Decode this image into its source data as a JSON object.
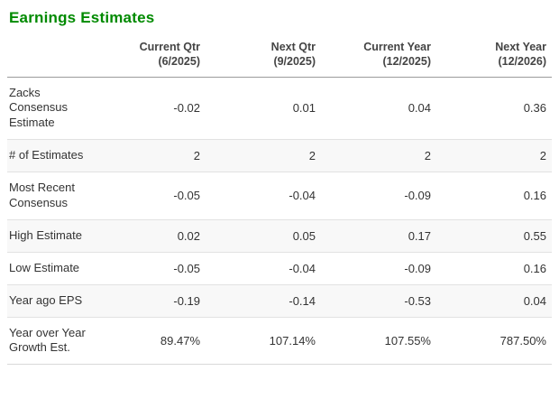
{
  "title": "Earnings Estimates",
  "colors": {
    "title_green": "#008a00",
    "header_divider": "#9b9b9b",
    "row_divider": "#e2e2e2",
    "alt_row_bg": "#f8f8f8",
    "text": "#333333"
  },
  "table": {
    "columns": [
      {
        "label": "Current Qtr",
        "sub": "(6/2025)"
      },
      {
        "label": "Next Qtr",
        "sub": "(9/2025)"
      },
      {
        "label": "Current Year",
        "sub": "(12/2025)"
      },
      {
        "label": "Next Year",
        "sub": "(12/2026)"
      }
    ],
    "rows": [
      {
        "label": "Zacks Consensus Estimate",
        "values": [
          "-0.02",
          "0.01",
          "0.04",
          "0.36"
        ]
      },
      {
        "label": "# of Estimates",
        "values": [
          "2",
          "2",
          "2",
          "2"
        ]
      },
      {
        "label": "Most Recent Consensus",
        "values": [
          "-0.05",
          "-0.04",
          "-0.09",
          "0.16"
        ]
      },
      {
        "label": "High Estimate",
        "values": [
          "0.02",
          "0.05",
          "0.17",
          "0.55"
        ]
      },
      {
        "label": "Low Estimate",
        "values": [
          "-0.05",
          "-0.04",
          "-0.09",
          "0.16"
        ]
      },
      {
        "label": "Year ago EPS",
        "values": [
          "-0.19",
          "-0.14",
          "-0.53",
          "0.04"
        ]
      },
      {
        "label": "Year over Year Growth Est.",
        "values": [
          "89.47%",
          "107.14%",
          "107.55%",
          "787.50%"
        ]
      }
    ]
  }
}
